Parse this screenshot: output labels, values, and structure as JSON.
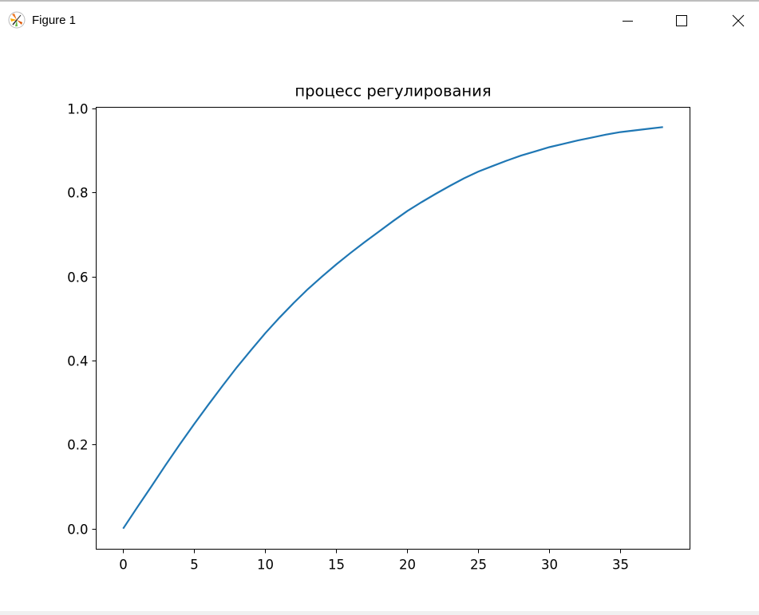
{
  "window": {
    "title": "Figure 1",
    "icon": "matplotlib-logo-icon",
    "controls": [
      "minimize-icon",
      "maximize-icon",
      "close-icon"
    ]
  },
  "chart_data": {
    "type": "line",
    "title": "процесс регулирования",
    "xlabel": "",
    "ylabel": "",
    "xlim": [
      -1.9,
      39.9
    ],
    "ylim": [
      -0.049,
      1.003
    ],
    "xticks": [
      0,
      5,
      10,
      15,
      20,
      25,
      30,
      35
    ],
    "xtick_labels": [
      "0",
      "5",
      "10",
      "15",
      "20",
      "25",
      "30",
      "35"
    ],
    "yticks": [
      0.0,
      0.2,
      0.4,
      0.6,
      0.8,
      1.0
    ],
    "ytick_labels": [
      "0.0",
      "0.2",
      "0.4",
      "0.6",
      "0.8",
      "1.0"
    ],
    "grid": false,
    "series": [
      {
        "color": "#1f77b4",
        "x": [
          0,
          1,
          2,
          3,
          4,
          5,
          6,
          7,
          8,
          9,
          10,
          11,
          12,
          13,
          14,
          15,
          16,
          17,
          18,
          19,
          20,
          21,
          22,
          23,
          24,
          25,
          26,
          27,
          28,
          29,
          30,
          31,
          32,
          33,
          34,
          35,
          36,
          37,
          38
        ],
        "y": [
          0,
          0.051,
          0.101,
          0.152,
          0.201,
          0.249,
          0.295,
          0.34,
          0.384,
          0.425,
          0.465,
          0.502,
          0.537,
          0.57,
          0.6,
          0.629,
          0.656,
          0.682,
          0.707,
          0.732,
          0.756,
          0.777,
          0.797,
          0.816,
          0.834,
          0.85,
          0.863,
          0.876,
          0.888,
          0.898,
          0.908,
          0.916,
          0.924,
          0.931,
          0.938,
          0.944,
          0.948,
          0.952,
          0.956
        ]
      }
    ]
  }
}
